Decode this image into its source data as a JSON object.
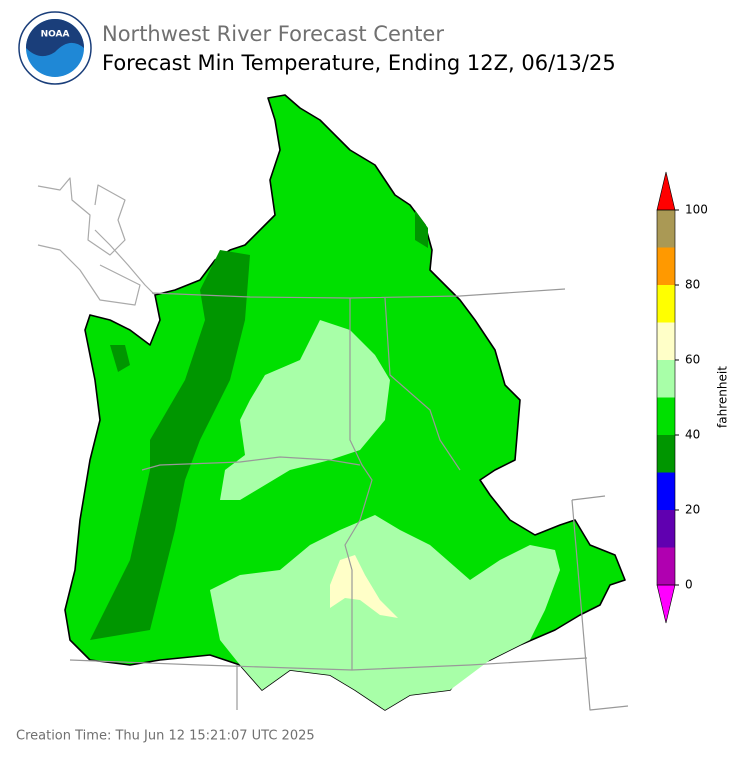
{
  "header": {
    "logo_text": "NOAA",
    "agency_title": "Northwest River Forecast Center",
    "title": "Forecast Min Temperature, Ending 12Z, 06/13/25"
  },
  "colorbar": {
    "label": "fahrenheit",
    "lim": [
      0,
      100
    ],
    "bins": [
      0,
      10,
      20,
      30,
      40,
      50,
      60,
      70,
      80,
      90,
      100
    ],
    "colors": [
      "#b000b0",
      "#6000b0",
      "#0000ff",
      "#009600",
      "#00e000",
      "#a8ffa8",
      "#ffffc8",
      "#ffff00",
      "#ff9900",
      "#aa9955"
    ],
    "under_color": "#ff00ff",
    "over_color": "#ff0000",
    "ticks": [
      0,
      20,
      40,
      60,
      80,
      100
    ]
  },
  "footer": {
    "creation_time": "Creation Time: Thu Jun 12 15:21:07 UTC 2025"
  }
}
